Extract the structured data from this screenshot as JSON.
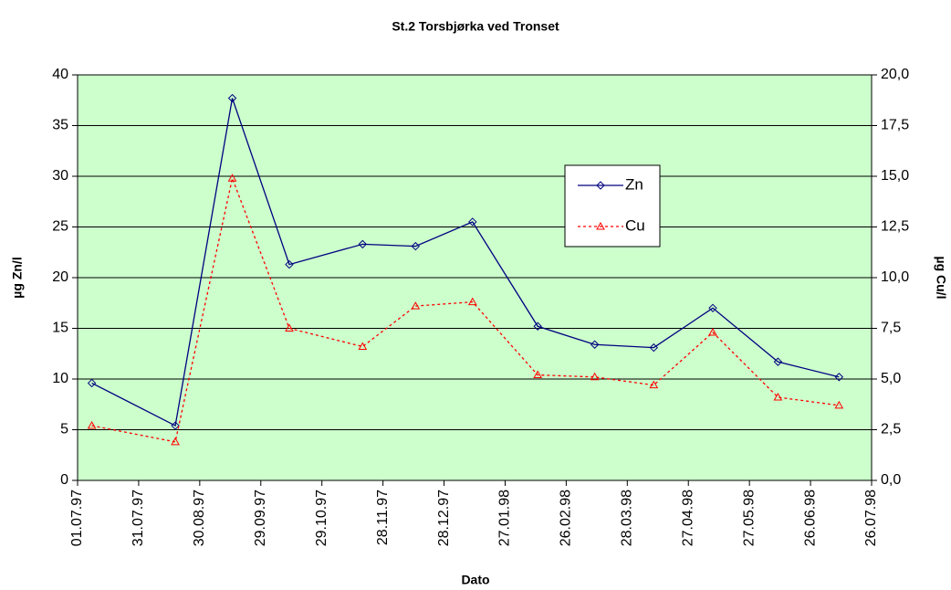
{
  "chart_data": {
    "type": "line",
    "title": "St.2 Torsbjørka ved Tronset",
    "x_label": "Dato",
    "y_label": "µg Zn/l",
    "y2_label": "µg Cu/l",
    "x": [
      "08.07.97",
      "18.08.97",
      "15.09.97",
      "13.10.97",
      "18.11.97",
      "14.12.97",
      "11.01.98",
      "12.02.98",
      "12.03.98",
      "10.04.98",
      "09.05.98",
      "10.06.98",
      "10.07.98"
    ],
    "series": [
      {
        "name": "Zn",
        "color": "#000080",
        "marker": "diamond",
        "dash": false,
        "values": [
          9.6,
          5.4,
          37.7,
          21.3,
          23.3,
          23.1,
          25.5,
          15.2,
          13.4,
          13.1,
          17.0,
          11.7,
          10.2
        ]
      },
      {
        "name": "Cu",
        "color": "#ff0000",
        "marker": "triangle",
        "dash": true,
        "axis": "y2",
        "values": [
          2.7,
          1.9,
          14.9,
          7.5,
          6.6,
          8.6,
          8.8,
          5.2,
          5.1,
          4.7,
          7.3,
          4.1,
          3.7
        ]
      }
    ],
    "xlim": [
      "01.07.97",
      "26.07.98"
    ],
    "xticks": [
      "01.07.97",
      "31.07.97",
      "30.08.97",
      "29.09.97",
      "29.10.97",
      "28.11.97",
      "28.12.97",
      "27.01.98",
      "26.02.98",
      "28.03.98",
      "27.04.98",
      "27.05.98",
      "26.06.98",
      "26.07.98"
    ],
    "ylim": [
      0,
      40
    ],
    "yticks": [
      0,
      5,
      10,
      15,
      20,
      25,
      30,
      35,
      40
    ],
    "y2lim": [
      0,
      20
    ],
    "y2ticks": [
      {
        "value": 0,
        "label": "0,0"
      },
      {
        "value": 2.5,
        "label": "2,5"
      },
      {
        "value": 5,
        "label": "5,0"
      },
      {
        "value": 7.5,
        "label": "7,5"
      },
      {
        "value": 10,
        "label": "10,0"
      },
      {
        "value": 12.5,
        "label": "12,5"
      },
      {
        "value": 15,
        "label": "15,0"
      },
      {
        "value": 17.5,
        "label": "17,5"
      },
      {
        "value": 20,
        "label": "20,0"
      }
    ],
    "grid": true,
    "background": "#ccffcc",
    "legend": "upper right"
  }
}
